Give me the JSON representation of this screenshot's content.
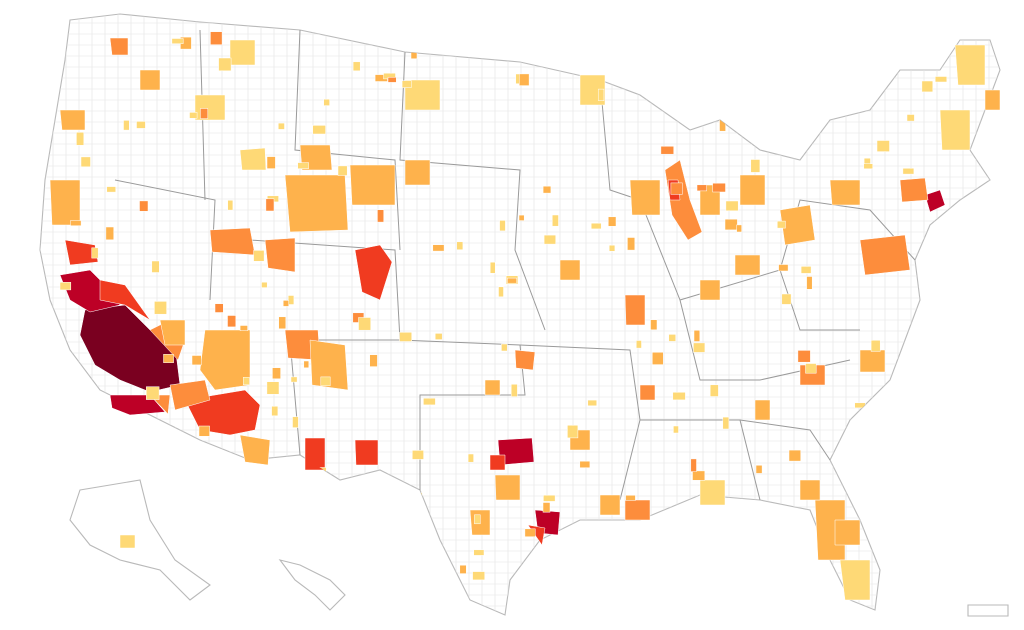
{
  "map": {
    "kind": "us-county-choropleth",
    "palette": [
      "#ffffb2",
      "#fed976",
      "#feb24c",
      "#fd8d3c",
      "#f03b20",
      "#bd0026",
      "#7a0020"
    ],
    "land_outline_color": "#b9b9b9",
    "county_line_color": "#e3e3e3",
    "state_line_color": "#9a9a9a",
    "regions": [
      {
        "id": "CA-south-core",
        "level": 6
      },
      {
        "id": "CA-central-valley",
        "level": 5
      },
      {
        "id": "AZ-maricopa",
        "level": 4
      },
      {
        "id": "TX-dallas",
        "level": 5
      },
      {
        "id": "TX-houston",
        "level": 5
      },
      {
        "id": "CO-front-range",
        "level": 4
      },
      {
        "id": "NY-metro",
        "level": 5
      },
      {
        "id": "MI-chicago",
        "level": 3
      }
    ]
  }
}
